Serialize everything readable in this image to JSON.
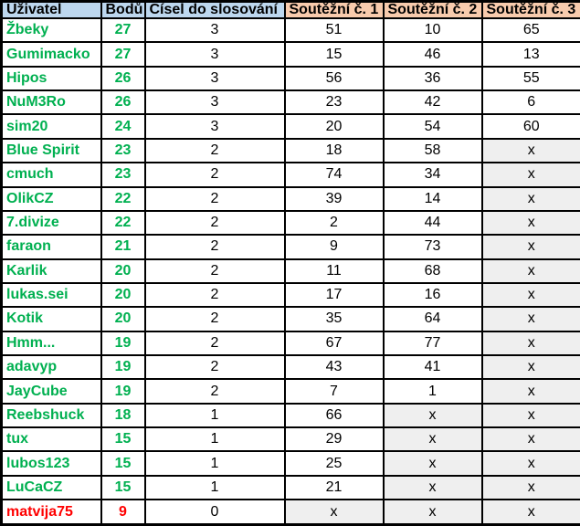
{
  "colors": {
    "header_blue": "#BDD7EE",
    "header_orange": "#F8CBAD",
    "user_green": "#00B050",
    "user_red": "#FF0000",
    "missing_cell_bg": "#EFEFEF",
    "border_color": "#000000"
  },
  "missing_marker": "x",
  "chart_data": {
    "type": "table",
    "title": "",
    "columns": [
      "Uživatel",
      "Bodů",
      "Čísel do slosování",
      "Soutěžní č. 1",
      "Soutěžní č. 2",
      "Soutěžní č. 3"
    ],
    "header_groups": [
      "blue",
      "blue",
      "blue",
      "orange",
      "orange",
      "orange"
    ],
    "rows": [
      {
        "user_color": "green",
        "cells": [
          "Žbeky",
          "27",
          "3",
          "51",
          "10",
          "65"
        ]
      },
      {
        "user_color": "green",
        "cells": [
          "Gumimacko",
          "27",
          "3",
          "15",
          "46",
          "13"
        ]
      },
      {
        "user_color": "green",
        "cells": [
          "Hipos",
          "26",
          "3",
          "56",
          "36",
          "55"
        ]
      },
      {
        "user_color": "green",
        "cells": [
          "NuM3Ro",
          "26",
          "3",
          "23",
          "42",
          "6"
        ]
      },
      {
        "user_color": "green",
        "cells": [
          "sim20",
          "24",
          "3",
          "20",
          "54",
          "60"
        ]
      },
      {
        "user_color": "green",
        "cells": [
          "Blue Spirit",
          "23",
          "2",
          "18",
          "58",
          "x"
        ]
      },
      {
        "user_color": "green",
        "cells": [
          "cmuch",
          "23",
          "2",
          "74",
          "34",
          "x"
        ]
      },
      {
        "user_color": "green",
        "cells": [
          "OlikCZ",
          "22",
          "2",
          "39",
          "14",
          "x"
        ]
      },
      {
        "user_color": "green",
        "cells": [
          "7.divize",
          "22",
          "2",
          "2",
          "44",
          "x"
        ]
      },
      {
        "user_color": "green",
        "cells": [
          "faraon",
          "21",
          "2",
          "9",
          "73",
          "x"
        ]
      },
      {
        "user_color": "green",
        "cells": [
          "Karlik",
          "20",
          "2",
          "11",
          "68",
          "x"
        ]
      },
      {
        "user_color": "green",
        "cells": [
          "lukas.sei",
          "20",
          "2",
          "17",
          "16",
          "x"
        ]
      },
      {
        "user_color": "green",
        "cells": [
          "Kotik",
          "20",
          "2",
          "35",
          "64",
          "x"
        ]
      },
      {
        "user_color": "green",
        "cells": [
          "Hmm...",
          "19",
          "2",
          "67",
          "77",
          "x"
        ]
      },
      {
        "user_color": "green",
        "cells": [
          "adavyp",
          "19",
          "2",
          "43",
          "41",
          "x"
        ]
      },
      {
        "user_color": "green",
        "cells": [
          "JayCube",
          "19",
          "2",
          "7",
          "1",
          "x"
        ]
      },
      {
        "user_color": "green",
        "cells": [
          "Reebshuck",
          "18",
          "1",
          "66",
          "x",
          "x"
        ]
      },
      {
        "user_color": "green",
        "cells": [
          "tux",
          "15",
          "1",
          "29",
          "x",
          "x"
        ]
      },
      {
        "user_color": "green",
        "cells": [
          "lubos123",
          "15",
          "1",
          "25",
          "x",
          "x"
        ]
      },
      {
        "user_color": "green",
        "cells": [
          "LuCaCZ",
          "15",
          "1",
          "21",
          "x",
          "x"
        ]
      },
      {
        "user_color": "red",
        "cells": [
          "matvija75",
          "9",
          "0",
          "x",
          "x",
          "x"
        ]
      }
    ]
  }
}
